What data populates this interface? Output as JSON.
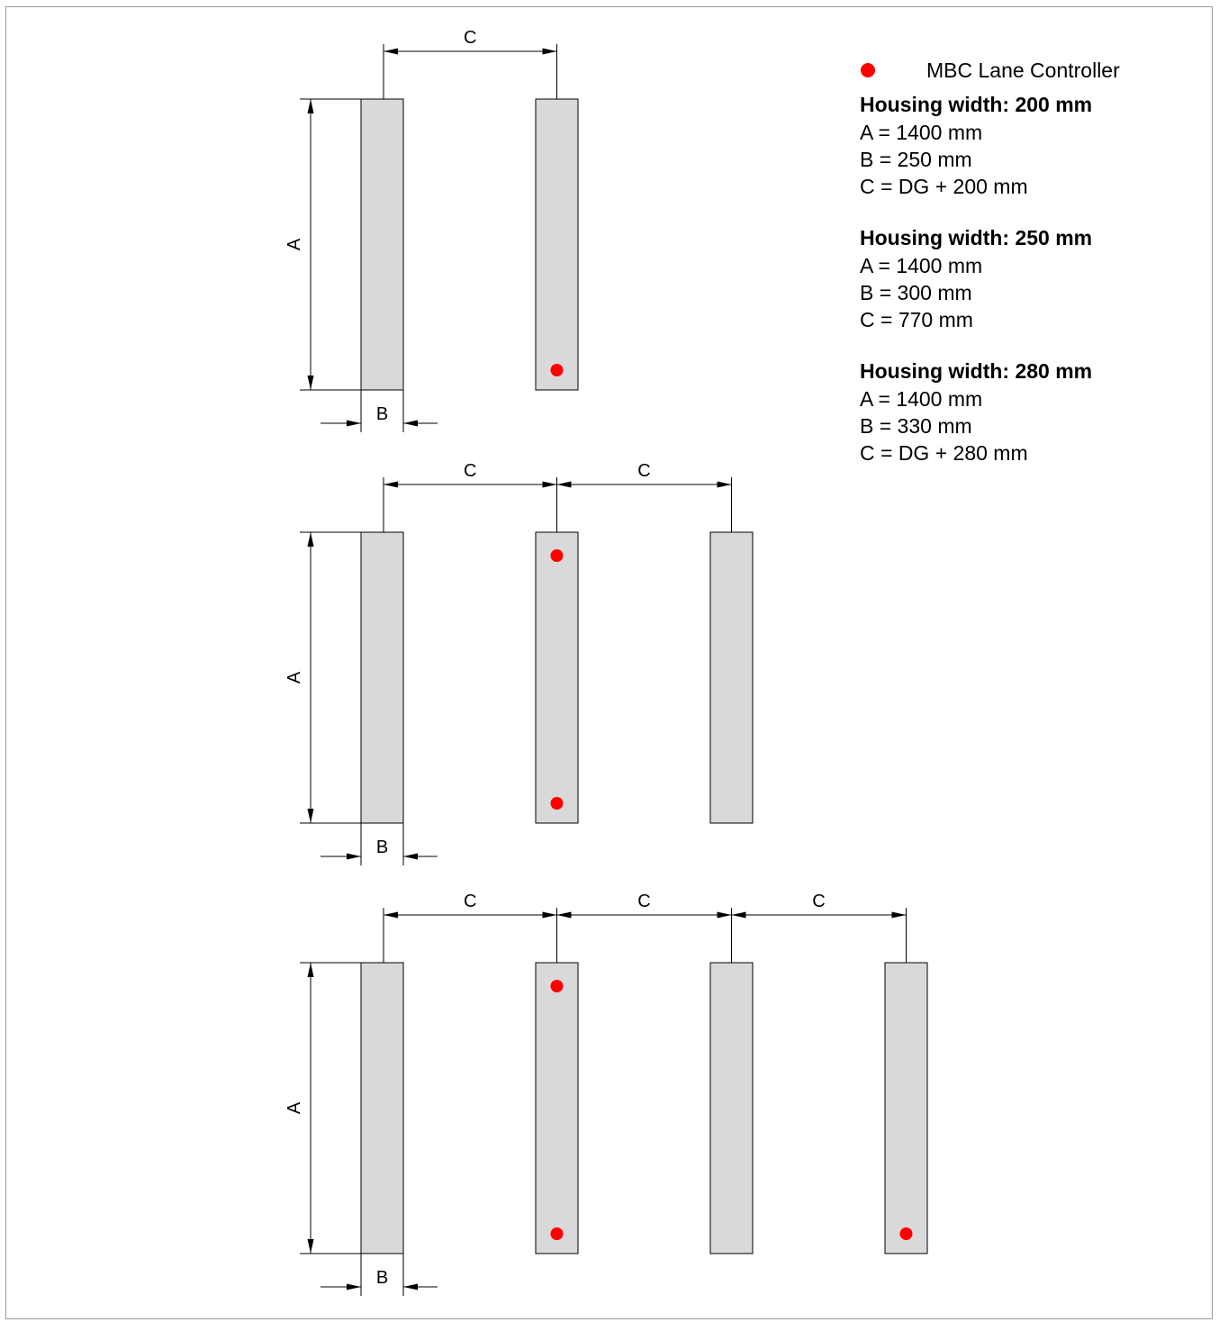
{
  "colors": {
    "housing_fill": "#d9d9d9",
    "line": "#000000",
    "controller_dot": "#ff0000"
  },
  "dimension_labels": {
    "a": "A",
    "b": "B",
    "c": "C"
  },
  "legend": {
    "icon": "red-dot-icon",
    "label": "MBC Lane Controller"
  },
  "specs": [
    {
      "title": "Housing width: 200 mm",
      "lines": [
        "A = 1400 mm",
        "B = 250 mm",
        "C = DG + 200 mm"
      ]
    },
    {
      "title": "Housing width: 250 mm",
      "lines": [
        "A = 1400 mm",
        "B = 300 mm",
        "C = 770 mm"
      ]
    },
    {
      "title": "Housing width: 280 mm",
      "lines": [
        "A = 1400 mm",
        "B = 330 mm",
        "C = DG + 280 mm"
      ]
    }
  ],
  "layouts": [
    {
      "housings": 2,
      "controllers": [
        {
          "housing": 2,
          "end": "bottom"
        }
      ]
    },
    {
      "housings": 3,
      "controllers": [
        {
          "housing": 2,
          "end": "top"
        },
        {
          "housing": 2,
          "end": "bottom"
        }
      ]
    },
    {
      "housings": 4,
      "controllers": [
        {
          "housing": 2,
          "end": "top"
        },
        {
          "housing": 2,
          "end": "bottom"
        },
        {
          "housing": 4,
          "end": "bottom"
        }
      ]
    }
  ]
}
